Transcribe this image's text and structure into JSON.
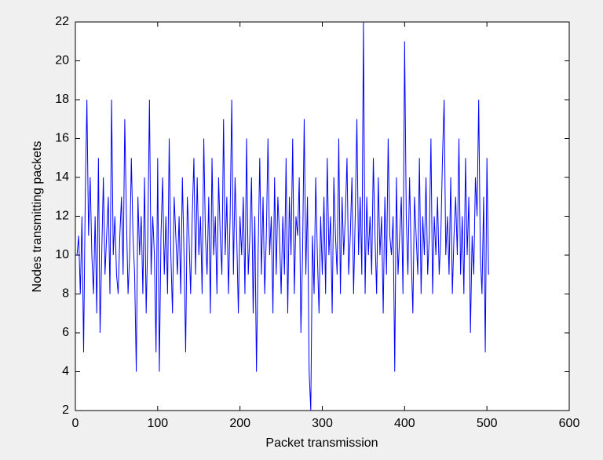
{
  "chart_data": {
    "type": "line",
    "xlabel": "Packet transmission",
    "ylabel": "Nodes transmitting packets",
    "color": "#0000ff",
    "grid": false,
    "xlim": [
      0,
      600
    ],
    "xticks": [
      0,
      100,
      200,
      300,
      400,
      500,
      600
    ],
    "ylim": [
      2,
      22
    ],
    "yticks": [
      2,
      4,
      6,
      8,
      10,
      12,
      14,
      16,
      18,
      20,
      22
    ],
    "x": [
      2,
      4,
      6,
      8,
      10,
      12,
      14,
      16,
      18,
      20,
      22,
      24,
      26,
      28,
      30,
      32,
      34,
      36,
      38,
      40,
      42,
      44,
      46,
      48,
      50,
      52,
      54,
      56,
      58,
      60,
      62,
      64,
      66,
      68,
      70,
      72,
      74,
      76,
      78,
      80,
      82,
      84,
      86,
      88,
      90,
      92,
      94,
      96,
      98,
      100,
      102,
      104,
      106,
      108,
      110,
      112,
      114,
      116,
      118,
      120,
      122,
      124,
      126,
      128,
      130,
      132,
      134,
      136,
      138,
      140,
      142,
      144,
      146,
      148,
      150,
      152,
      154,
      156,
      158,
      160,
      162,
      164,
      166,
      168,
      170,
      172,
      174,
      176,
      178,
      180,
      182,
      184,
      186,
      188,
      190,
      192,
      194,
      196,
      198,
      200,
      202,
      204,
      206,
      208,
      210,
      212,
      214,
      216,
      218,
      220,
      222,
      224,
      226,
      228,
      230,
      232,
      234,
      236,
      238,
      240,
      242,
      244,
      246,
      248,
      250,
      252,
      254,
      256,
      258,
      260,
      262,
      264,
      266,
      268,
      270,
      272,
      274,
      276,
      278,
      280,
      282,
      284,
      286,
      288,
      290,
      292,
      294,
      296,
      298,
      300,
      302,
      304,
      306,
      308,
      310,
      312,
      314,
      316,
      318,
      320,
      322,
      324,
      326,
      328,
      330,
      332,
      334,
      336,
      338,
      340,
      342,
      344,
      346,
      348,
      350,
      352,
      354,
      356,
      358,
      360,
      362,
      364,
      366,
      368,
      370,
      372,
      374,
      376,
      378,
      380,
      382,
      384,
      386,
      388,
      390,
      392,
      394,
      396,
      398,
      400,
      402,
      404,
      406,
      408,
      410,
      412,
      414,
      416,
      418,
      420,
      422,
      424,
      426,
      428,
      430,
      432,
      434,
      436,
      438,
      440,
      442,
      444,
      446,
      448,
      450,
      452,
      454,
      456,
      458,
      460,
      462,
      464,
      466,
      468,
      470,
      472,
      474,
      476,
      478,
      480,
      482,
      484,
      486,
      488,
      490,
      492,
      494,
      496,
      498,
      500,
      502
    ],
    "values": [
      10,
      11,
      8,
      12,
      5,
      13,
      18,
      11,
      14,
      10,
      8,
      12,
      7,
      15,
      6,
      10,
      14,
      9,
      11,
      13,
      8,
      18,
      10,
      12,
      9,
      8,
      11,
      13,
      9,
      17,
      12,
      8,
      10,
      15,
      11,
      9,
      4,
      13,
      10,
      12,
      8,
      14,
      7,
      11,
      18,
      9,
      12,
      10,
      5,
      15,
      4,
      11,
      14,
      9,
      12,
      8,
      16,
      10,
      7,
      13,
      11,
      9,
      12,
      8,
      14,
      10,
      5,
      13,
      11,
      8,
      12,
      15,
      9,
      14,
      10,
      12,
      8,
      16,
      11,
      9,
      13,
      7,
      15,
      10,
      12,
      8,
      14,
      11,
      9,
      17,
      10,
      13,
      8,
      12,
      18,
      9,
      14,
      11,
      7,
      12,
      10,
      13,
      8,
      16,
      9,
      11,
      14,
      7,
      12,
      4,
      10,
      15,
      9,
      13,
      8,
      11,
      16,
      10,
      12,
      7,
      14,
      9,
      13,
      11,
      8,
      12,
      9,
      15,
      7,
      13,
      10,
      16,
      8,
      12,
      11,
      14,
      6,
      10,
      17,
      9,
      13,
      4,
      2,
      11,
      8,
      14,
      10,
      7,
      12,
      9,
      13,
      8,
      15,
      10,
      12,
      7,
      14,
      11,
      9,
      16,
      8,
      13,
      10,
      12,
      15,
      9,
      11,
      14,
      8,
      12,
      17,
      10,
      13,
      9,
      22,
      8,
      13,
      10,
      12,
      9,
      15,
      11,
      8,
      14,
      10,
      12,
      7,
      13,
      9,
      16,
      11,
      10,
      12,
      4,
      14,
      9,
      11,
      13,
      8,
      21,
      12,
      9,
      14,
      10,
      7,
      13,
      11,
      9,
      15,
      8,
      12,
      10,
      14,
      9,
      11,
      16,
      8,
      12,
      10,
      13,
      9,
      11,
      15,
      18,
      10,
      12,
      9,
      14,
      8,
      11,
      13,
      10,
      16,
      9,
      12,
      8,
      15,
      10,
      13,
      6,
      11,
      9,
      14,
      12,
      18,
      10,
      8,
      13,
      5,
      15,
      9
    ]
  }
}
